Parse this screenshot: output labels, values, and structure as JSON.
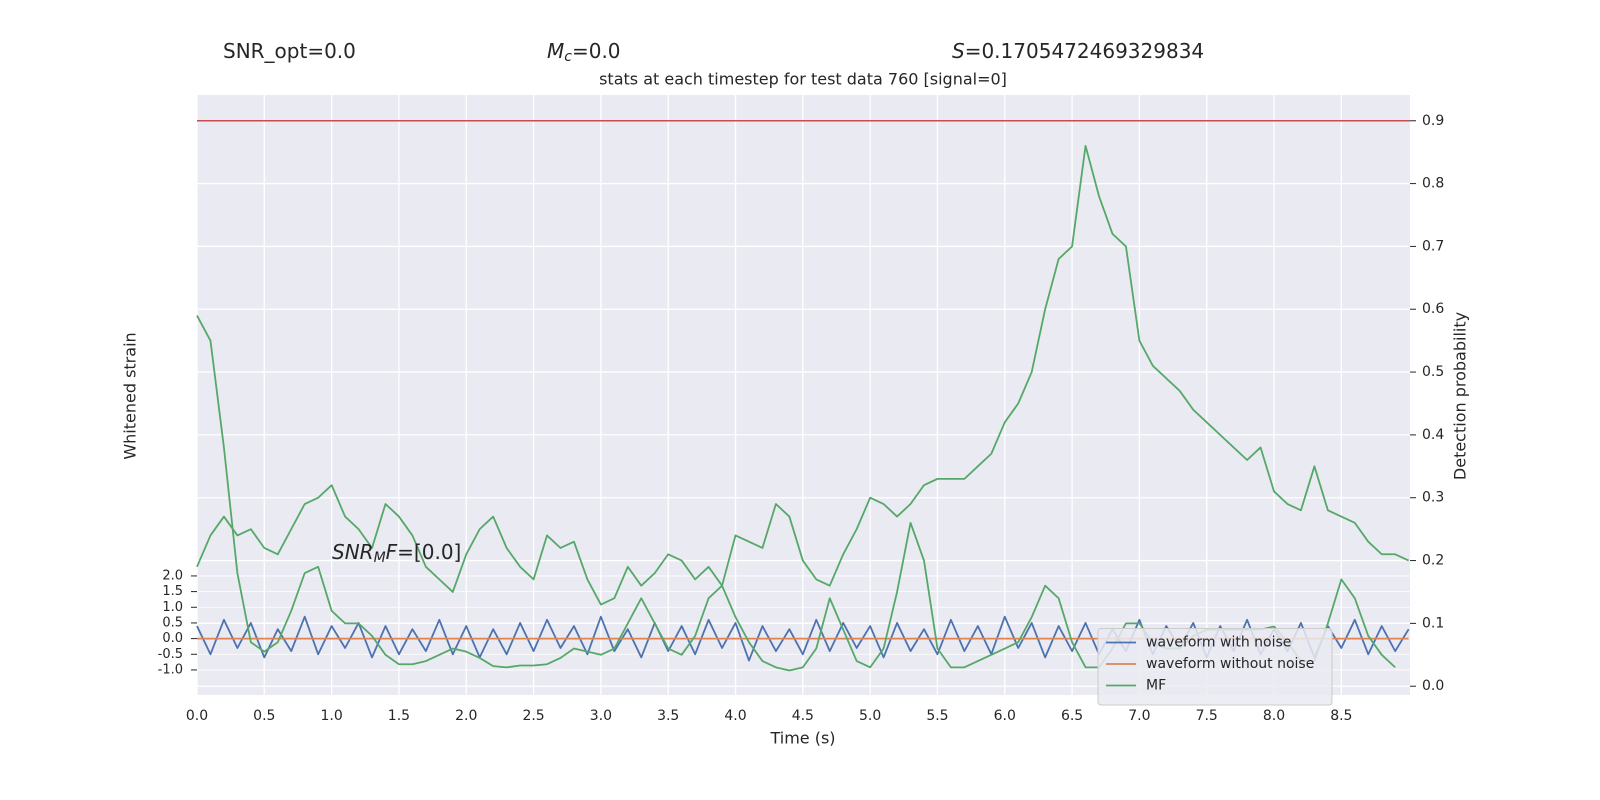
{
  "chart_data": {
    "type": "line",
    "title": "stats at each timestep for test data 760 [signal=0]",
    "header": [
      {
        "parts": [
          "SNR_opt=0.0"
        ]
      },
      {
        "parts": [
          "M",
          "c",
          "=0.0"
        ]
      },
      {
        "parts": [
          "S",
          "=0.1705472469329834"
        ]
      }
    ],
    "annotation": {
      "parts": [
        "SNR",
        "M",
        "F",
        "=[0.0]"
      ]
    },
    "xlabel": "Time (s)",
    "ylabel": "Whitened strain",
    "y2label": "Detection probability",
    "xlim": [
      0,
      9.01
    ],
    "ylim": [
      -1.8,
      17.35
    ],
    "y2lim": [
      -0.014,
      0.941
    ],
    "xticks": [
      {
        "value": 0,
        "label": "0.0"
      },
      0.5,
      {
        "value": 1,
        "label": "1.0"
      },
      1.5,
      {
        "value": 2,
        "label": "2.0"
      },
      2.5,
      {
        "value": 3,
        "label": "3.0"
      },
      3.5,
      {
        "value": 4,
        "label": "4.0"
      },
      4.5,
      {
        "value": 5,
        "label": "5.0"
      },
      5.5,
      {
        "value": 6,
        "label": "6.0"
      },
      6.5,
      {
        "value": 7,
        "label": "7.0"
      },
      7.5,
      {
        "value": 8,
        "label": "8.0"
      },
      8.5
    ],
    "yticks": [
      {
        "value": -1,
        "label": "-1.0"
      },
      -0.5,
      {
        "value": 0,
        "label": "0.0"
      },
      0.5,
      {
        "value": 1,
        "label": "1.0"
      },
      1.5,
      {
        "value": 2,
        "label": "2.0"
      }
    ],
    "y2ticks": [
      {
        "value": 0,
        "label": "0.0"
      },
      0.1,
      0.2,
      0.3,
      0.4,
      0.5,
      0.6,
      0.7,
      0.8,
      0.9
    ],
    "grid": true,
    "threshold": {
      "value": 0.9,
      "color": "#c44e52",
      "axis": "y2"
    },
    "legend": "lower right",
    "x": [
      0,
      0.1,
      0.2,
      0.3,
      0.4,
      0.5,
      0.6,
      0.7,
      0.8,
      0.9,
      1,
      1.1,
      1.2,
      1.3,
      1.4,
      1.5,
      1.6,
      1.7,
      1.8,
      1.9,
      2,
      2.1,
      2.2,
      2.3,
      2.4,
      2.5,
      2.6,
      2.7,
      2.8,
      2.9,
      3,
      3.1,
      3.2,
      3.3,
      3.4,
      3.5,
      3.6,
      3.7,
      3.8,
      3.9,
      4,
      4.1,
      4.2,
      4.3,
      4.4,
      4.5,
      4.6,
      4.7,
      4.8,
      4.9,
      5,
      5.1,
      5.2,
      5.3,
      5.4,
      5.5,
      5.6,
      5.7,
      5.8,
      5.9,
      6,
      6.1,
      6.2,
      6.3,
      6.4,
      6.5,
      6.6,
      6.7,
      6.8,
      6.9,
      7,
      7.1,
      7.2,
      7.3,
      7.4,
      7.5,
      7.6,
      7.7,
      7.8,
      7.9,
      8,
      8.1,
      8.2,
      8.3,
      8.4,
      8.5,
      8.6,
      8.7,
      8.8,
      8.9,
      9
    ],
    "series": [
      {
        "name": "waveform with noise",
        "color": "#4c72b0",
        "axis": "y",
        "values": [
          0.4,
          -0.5,
          0.6,
          -0.3,
          0.5,
          -0.6,
          0.3,
          -0.4,
          0.7,
          -0.5,
          0.4,
          -0.3,
          0.5,
          -0.6,
          0.4,
          -0.5,
          0.3,
          -0.4,
          0.6,
          -0.5,
          0.4,
          -0.6,
          0.3,
          -0.5,
          0.5,
          -0.4,
          0.6,
          -0.3,
          0.4,
          -0.5,
          0.7,
          -0.4,
          0.3,
          -0.6,
          0.5,
          -0.4,
          0.4,
          -0.5,
          0.6,
          -0.3,
          0.5,
          -0.7,
          0.4,
          -0.4,
          0.3,
          -0.5,
          0.6,
          -0.4,
          0.5,
          -0.3,
          0.4,
          -0.6,
          0.5,
          -0.4,
          0.3,
          -0.5,
          0.6,
          -0.4,
          0.4,
          -0.5,
          0.7,
          -0.3,
          0.5,
          -0.6,
          0.4,
          -0.4,
          0.5,
          -0.5,
          0.3,
          -0.4,
          0.6,
          -0.5,
          0.4,
          -0.3,
          0.5,
          -0.6,
          0.4,
          -0.4,
          0.6,
          -0.5,
          0.3,
          -0.4,
          0.5,
          -0.6,
          0.4,
          -0.3,
          0.6,
          -0.5,
          0.4,
          -0.4,
          0.3
        ]
      },
      {
        "name": "waveform without noise",
        "color": "#dd8452",
        "axis": "y",
        "values": [
          0,
          0,
          0,
          0,
          0,
          0,
          0,
          0,
          0,
          0,
          0,
          0,
          0,
          0,
          0,
          0,
          0,
          0,
          0,
          0,
          0,
          0,
          0,
          0,
          0,
          0,
          0,
          0,
          0,
          0,
          0,
          0,
          0,
          0,
          0,
          0,
          0,
          0,
          0,
          0,
          0,
          0,
          0,
          0,
          0,
          0,
          0,
          0,
          0,
          0,
          0,
          0,
          0,
          0,
          0,
          0,
          0,
          0,
          0,
          0,
          0,
          0,
          0,
          0,
          0,
          0,
          0,
          0,
          0,
          0,
          0,
          0,
          0,
          0,
          0,
          0,
          0,
          0,
          0,
          0,
          0,
          0,
          0,
          0,
          0,
          0,
          0,
          0,
          0,
          0,
          0
        ]
      },
      {
        "name": "MF",
        "color": "#55a868",
        "axis": "y2",
        "values": [
          0.59,
          0.55,
          0.38,
          0.18,
          0.07,
          0.055,
          0.07,
          0.12,
          0.18,
          0.19,
          0.12,
          0.1,
          0.1,
          0.08,
          0.05,
          0.035,
          0.035,
          0.04,
          0.05,
          0.06,
          0.055,
          0.045,
          0.032,
          0.03,
          0.033,
          0.033,
          0.035,
          0.045,
          0.06,
          0.055,
          0.05,
          0.06,
          0.1,
          0.14,
          0.1,
          0.06,
          0.05,
          0.08,
          0.14,
          0.16,
          0.11,
          0.07,
          0.04,
          0.03,
          0.025,
          0.03,
          0.06,
          0.14,
          0.09,
          0.04,
          0.03,
          0.06,
          0.15,
          0.26,
          0.2,
          0.06,
          0.03,
          0.03,
          0.04,
          0.05,
          0.06,
          0.07,
          0.11,
          0.16,
          0.14,
          0.07,
          0.03,
          0.03,
          0.06,
          0.1,
          0.1,
          0.07,
          0.06,
          0.06,
          0.08,
          0.09,
          0.09,
          0.09,
          0.09,
          0.09,
          0.095,
          0.07,
          0.04,
          0.04,
          0.1,
          0.17,
          0.14,
          0.08,
          0.05,
          0.03,
          null
        ]
      },
      {
        "color": "#55a868",
        "axis": "y2",
        "values": [
          0.19,
          0.24,
          0.27,
          0.24,
          0.25,
          0.22,
          0.21,
          0.25,
          0.29,
          0.3,
          0.32,
          0.27,
          0.25,
          0.22,
          0.29,
          0.27,
          0.24,
          0.19,
          0.17,
          0.15,
          0.21,
          0.25,
          0.27,
          0.22,
          0.19,
          0.17,
          0.24,
          0.22,
          0.23,
          0.17,
          0.13,
          0.14,
          0.19,
          0.16,
          0.18,
          0.21,
          0.2,
          0.17,
          0.19,
          0.16,
          0.24,
          0.23,
          0.22,
          0.29,
          0.27,
          0.2,
          0.17,
          0.16,
          0.21,
          0.25,
          0.3,
          0.29,
          0.27,
          0.29,
          0.32,
          0.33,
          0.33,
          0.33,
          0.35,
          0.37,
          0.42,
          0.45,
          0.5,
          0.6,
          0.68,
          0.7,
          0.86,
          0.78,
          0.72,
          0.7,
          0.55,
          0.51,
          0.49,
          0.47,
          0.44,
          0.42,
          0.4,
          0.38,
          0.36,
          0.38,
          0.31,
          0.29,
          0.28,
          0.35,
          0.28,
          0.27,
          0.26,
          0.23,
          0.21,
          0.21,
          0.2
        ]
      }
    ]
  }
}
